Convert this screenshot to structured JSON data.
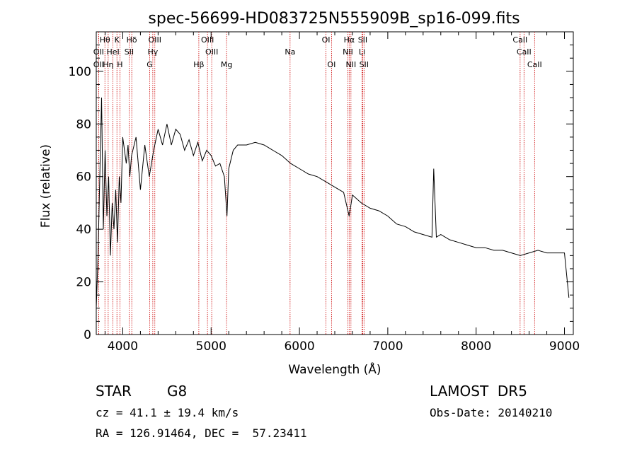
{
  "chart_data": {
    "type": "line",
    "title": "spec-56699-HD083725N555909B_sp16-099.fits",
    "xlabel": "Wavelength (Å)",
    "ylabel": "Flux (relative)",
    "xlim": [
      3700,
      9100
    ],
    "ylim": [
      0,
      115
    ],
    "x_ticks": [
      4000,
      5000,
      6000,
      7000,
      8000,
      9000
    ],
    "y_ticks": [
      0,
      20,
      40,
      60,
      80,
      100
    ],
    "grid": false,
    "series": [
      {
        "x": [
          3700,
          3720,
          3740,
          3760,
          3780,
          3800,
          3820,
          3840,
          3860,
          3880,
          3900,
          3920,
          3940,
          3960,
          3980,
          4000,
          4020,
          4040,
          4060,
          4080,
          4100,
          4150,
          4200,
          4250,
          4300,
          4350,
          4400,
          4450,
          4500,
          4550,
          4600,
          4650,
          4700,
          4750,
          4800,
          4850,
          4900,
          4950,
          5000,
          5050,
          5100,
          5150,
          5180,
          5200,
          5250,
          5300,
          5400,
          5500,
          5600,
          5700,
          5800,
          5900,
          6000,
          6100,
          6200,
          6300,
          6400,
          6500,
          6563,
          6600,
          6700,
          6800,
          6900,
          7000,
          7100,
          7200,
          7300,
          7400,
          7500,
          7520,
          7550,
          7600,
          7700,
          7800,
          7900,
          8000,
          8100,
          8200,
          8300,
          8400,
          8500,
          8600,
          8700,
          8800,
          8900,
          9000,
          9050
        ],
        "y": [
          10,
          30,
          60,
          90,
          40,
          70,
          45,
          60,
          30,
          50,
          40,
          55,
          35,
          60,
          50,
          75,
          70,
          65,
          72,
          60,
          68,
          75,
          55,
          72,
          60,
          70,
          78,
          72,
          80,
          72,
          78,
          76,
          70,
          74,
          68,
          73,
          66,
          70,
          68,
          64,
          65,
          60,
          45,
          63,
          70,
          72,
          72,
          73,
          72,
          70,
          68,
          65,
          63,
          61,
          60,
          58,
          56,
          54,
          45,
          53,
          50,
          48,
          47,
          45,
          42,
          41,
          39,
          38,
          37,
          63,
          37,
          38,
          36,
          35,
          34,
          33,
          33,
          32,
          32,
          31,
          30,
          31,
          32,
          31,
          31,
          31,
          14
        ]
      }
    ],
    "lines": [
      {
        "label": "Hθ",
        "x": 3798,
        "row": 1
      },
      {
        "label": "OII",
        "x": 3727,
        "row": 2
      },
      {
        "label": "OII",
        "x": 3727,
        "row": 3
      },
      {
        "label": "HeI",
        "x": 3889,
        "row": 2
      },
      {
        "label": "Hη",
        "x": 3835,
        "row": 3
      },
      {
        "label": "K",
        "x": 3934,
        "row": 1
      },
      {
        "label": "H",
        "x": 3968,
        "row": 3
      },
      {
        "label": "Hδ",
        "x": 4102,
        "row": 1
      },
      {
        "label": "SII",
        "x": 4072,
        "row": 2
      },
      {
        "label": "OIII",
        "x": 4363,
        "row": 1
      },
      {
        "label": "Hγ",
        "x": 4340,
        "row": 2
      },
      {
        "label": "G",
        "x": 4305,
        "row": 3
      },
      {
        "label": "OIII",
        "x": 4959,
        "row": 1
      },
      {
        "label": "OIII",
        "x": 5007,
        "row": 2
      },
      {
        "label": "Hβ",
        "x": 4861,
        "row": 3
      },
      {
        "label": "Mg",
        "x": 5175,
        "row": 3
      },
      {
        "label": "Na",
        "x": 5894,
        "row": 2
      },
      {
        "label": "OI",
        "x": 6300,
        "row": 1
      },
      {
        "label": "OI",
        "x": 6363,
        "row": 3
      },
      {
        "label": "Hα",
        "x": 6563,
        "row": 1
      },
      {
        "label": "NII",
        "x": 6548,
        "row": 2
      },
      {
        "label": "NII",
        "x": 6583,
        "row": 3
      },
      {
        "label": "SII",
        "x": 6716,
        "row": 1
      },
      {
        "label": "Li",
        "x": 6708,
        "row": 2
      },
      {
        "label": "SII",
        "x": 6731,
        "row": 3
      },
      {
        "label": "CaII",
        "x": 8498,
        "row": 1
      },
      {
        "label": "CaII",
        "x": 8542,
        "row": 2
      },
      {
        "label": "CaII",
        "x": 8662,
        "row": 3
      }
    ]
  },
  "info": {
    "class_text": "STAR",
    "subclass_text": "G8",
    "survey_text": "LAMOST  DR5",
    "cz_text": "cz = 41.1 ± 19.4 km/s",
    "obs_date_text": "Obs-Date: 20140210",
    "coords_text": "RA = 126.91464, DEC =  57.23411"
  },
  "colors": {
    "spectrum": "#000000",
    "line_markers": "#cc0000"
  }
}
